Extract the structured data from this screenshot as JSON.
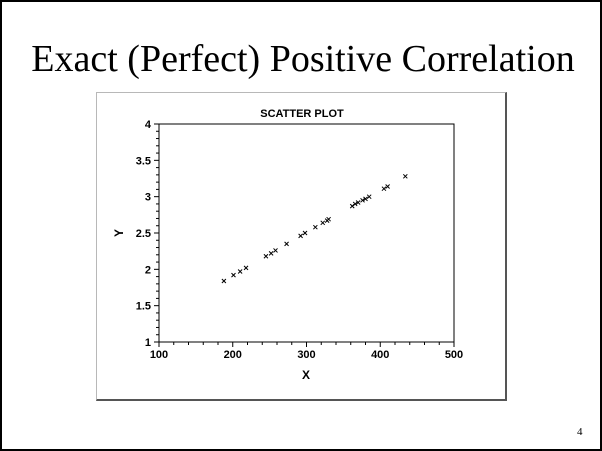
{
  "slide": {
    "title": "Exact (Perfect) Positive Correlation",
    "page_number": "4"
  },
  "chart_data": {
    "type": "scatter",
    "title": "SCATTER PLOT",
    "xlabel": "X",
    "ylabel": "Y",
    "xlim": [
      100,
      500
    ],
    "ylim": [
      1,
      4
    ],
    "x_ticks": [
      "100",
      "200",
      "300",
      "400",
      "500"
    ],
    "y_ticks": [
      "1",
      "1.5",
      "2",
      "2.5",
      "3",
      "3.5",
      "4"
    ],
    "grid": false,
    "marker": "x",
    "marker_color": "#000000",
    "points": [
      {
        "x": 188,
        "y": 1.84
      },
      {
        "x": 201,
        "y": 1.92
      },
      {
        "x": 210,
        "y": 1.97
      },
      {
        "x": 218,
        "y": 2.02
      },
      {
        "x": 245,
        "y": 2.18
      },
      {
        "x": 252,
        "y": 2.22
      },
      {
        "x": 258,
        "y": 2.26
      },
      {
        "x": 273,
        "y": 2.35
      },
      {
        "x": 292,
        "y": 2.46
      },
      {
        "x": 298,
        "y": 2.5
      },
      {
        "x": 312,
        "y": 2.58
      },
      {
        "x": 322,
        "y": 2.64
      },
      {
        "x": 328,
        "y": 2.67
      },
      {
        "x": 330,
        "y": 2.69
      },
      {
        "x": 362,
        "y": 2.87
      },
      {
        "x": 366,
        "y": 2.9
      },
      {
        "x": 370,
        "y": 2.92
      },
      {
        "x": 376,
        "y": 2.95
      },
      {
        "x": 380,
        "y": 2.97
      },
      {
        "x": 385,
        "y": 3.0
      },
      {
        "x": 405,
        "y": 3.11
      },
      {
        "x": 410,
        "y": 3.14
      },
      {
        "x": 434,
        "y": 3.28
      }
    ]
  }
}
